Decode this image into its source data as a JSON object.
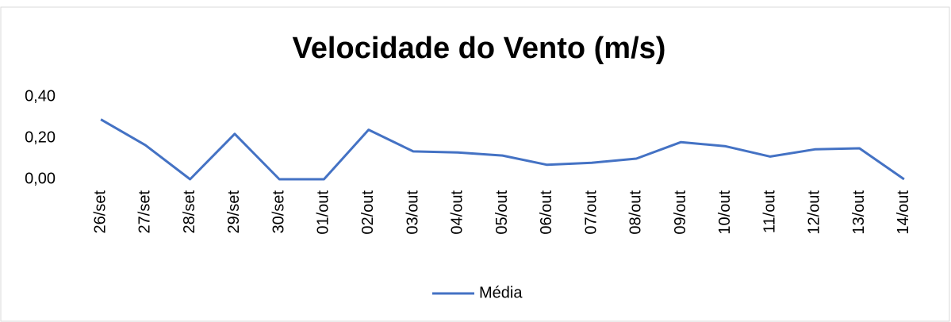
{
  "chart_data": {
    "type": "line",
    "title": "Velocidade do Vento (m/s)",
    "categories": [
      "26/set",
      "27/set",
      "28/set",
      "29/set",
      "30/set",
      "01/out",
      "02/out",
      "03/out",
      "04/out",
      "05/out",
      "06/out",
      "07/out",
      "08/out",
      "09/out",
      "10/out",
      "11/out",
      "12/out",
      "13/out",
      "14/out"
    ],
    "series": [
      {
        "name": "Média",
        "color": "#4472c4",
        "values": [
          0.29,
          0.165,
          0,
          0.22,
          0,
          0,
          0.24,
          0.135,
          0.13,
          0.115,
          0.07,
          0.08,
          0.1,
          0.18,
          0.16,
          0.11,
          0.145,
          0.15,
          0
        ]
      }
    ],
    "ylim": [
      0,
      0.4
    ],
    "yticks": [
      {
        "value": 0,
        "label": "0,00"
      },
      {
        "value": 0.2,
        "label": "0,20"
      },
      {
        "value": 0.4,
        "label": "0,40"
      }
    ],
    "grid": false,
    "legend": "bottom"
  }
}
